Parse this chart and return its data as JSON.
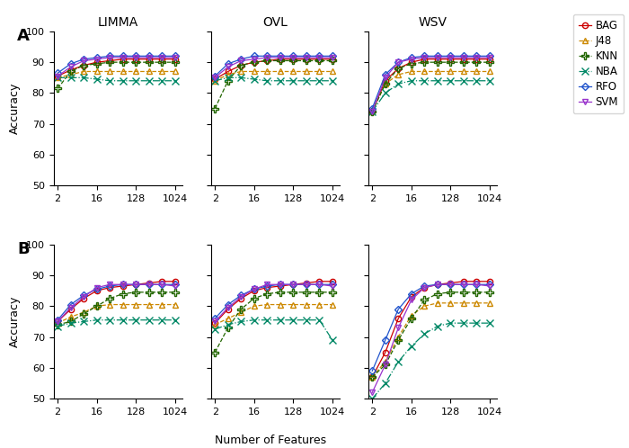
{
  "x_vals": [
    2,
    4,
    8,
    16,
    32,
    64,
    128,
    256,
    512,
    1024
  ],
  "col_titles": [
    "LIMMA",
    "OVL",
    "WSV"
  ],
  "row_labels": [
    "A",
    "B"
  ],
  "ylim": [
    50,
    100
  ],
  "yticks": [
    50,
    60,
    70,
    80,
    90,
    100
  ],
  "series": [
    "BAG",
    "J48",
    "KNN",
    "NBA",
    "RFO",
    "SVM"
  ],
  "colors": {
    "BAG": "#cc0000",
    "J48": "#cc8800",
    "KNN": "#226600",
    "NBA": "#008866",
    "RFO": "#2255cc",
    "SVM": "#9933cc"
  },
  "markers": {
    "BAG": "o",
    "J48": "^",
    "KNN": "P",
    "NBA": "x",
    "RFO": "D",
    "SVM": "v"
  },
  "linestyles": {
    "BAG": "-",
    "J48": "--",
    "KNN": "--",
    "NBA": "-.",
    "RFO": "-",
    "SVM": "-"
  },
  "markerfilled": {
    "BAG": false,
    "J48": false,
    "KNN": false,
    "NBA": true,
    "RFO": false,
    "SVM": false
  },
  "data": {
    "A": {
      "LIMMA": {
        "BAG": [
          85.5,
          87.5,
          89.0,
          90.0,
          90.5,
          91.0,
          91.0,
          91.0,
          91.0,
          91.0
        ],
        "J48": [
          85.0,
          86.0,
          87.0,
          87.0,
          87.0,
          87.0,
          87.0,
          87.0,
          87.0,
          87.0
        ],
        "KNN": [
          81.5,
          87.0,
          89.0,
          89.5,
          90.0,
          90.0,
          90.0,
          90.0,
          90.0,
          90.0
        ],
        "NBA": [
          85.0,
          85.0,
          85.0,
          84.5,
          84.0,
          84.0,
          84.0,
          84.0,
          84.0,
          84.0
        ],
        "RFO": [
          86.5,
          89.5,
          91.0,
          91.5,
          92.0,
          92.0,
          92.0,
          92.0,
          92.0,
          92.0
        ],
        "SVM": [
          85.5,
          88.5,
          90.5,
          91.0,
          91.5,
          91.5,
          91.5,
          91.5,
          91.5,
          91.5
        ]
      },
      "OVL": {
        "BAG": [
          84.5,
          87.0,
          89.0,
          90.0,
          90.5,
          91.0,
          91.0,
          91.0,
          91.0,
          91.0
        ],
        "J48": [
          84.0,
          86.0,
          87.0,
          87.0,
          87.0,
          87.0,
          87.0,
          87.0,
          87.0,
          87.0
        ],
        "KNN": [
          75.0,
          84.0,
          89.0,
          90.0,
          90.5,
          90.5,
          90.5,
          90.5,
          90.5,
          90.5
        ],
        "NBA": [
          84.0,
          85.0,
          85.0,
          84.5,
          84.0,
          84.0,
          84.0,
          84.0,
          84.0,
          84.0
        ],
        "RFO": [
          85.5,
          89.5,
          91.0,
          92.0,
          92.0,
          92.0,
          92.0,
          92.0,
          92.0,
          92.0
        ],
        "SVM": [
          85.0,
          88.5,
          90.5,
          91.0,
          91.5,
          91.5,
          91.5,
          91.5,
          91.5,
          91.5
        ]
      },
      "WSV": {
        "BAG": [
          74.0,
          84.0,
          88.0,
          90.0,
          91.0,
          91.0,
          91.0,
          91.0,
          91.0,
          91.0
        ],
        "J48": [
          74.0,
          83.0,
          86.0,
          87.0,
          87.0,
          87.0,
          87.0,
          87.0,
          87.0,
          87.0
        ],
        "KNN": [
          74.0,
          83.0,
          88.0,
          89.5,
          90.0,
          90.0,
          90.0,
          90.0,
          90.0,
          90.0
        ],
        "NBA": [
          74.0,
          80.0,
          83.0,
          84.0,
          84.0,
          84.0,
          84.0,
          84.0,
          84.0,
          84.0
        ],
        "RFO": [
          75.0,
          86.0,
          90.0,
          91.5,
          92.0,
          92.0,
          92.0,
          92.0,
          92.0,
          92.0
        ],
        "SVM": [
          74.0,
          85.0,
          90.0,
          91.0,
          91.5,
          91.5,
          91.5,
          91.5,
          91.5,
          91.5
        ]
      }
    },
    "B": {
      "LIMMA": {
        "BAG": [
          75.0,
          79.0,
          82.5,
          85.0,
          86.0,
          86.5,
          87.0,
          87.5,
          88.0,
          88.0
        ],
        "J48": [
          74.5,
          76.5,
          78.0,
          80.0,
          80.5,
          80.5,
          80.5,
          80.5,
          80.5,
          80.5
        ],
        "KNN": [
          74.0,
          75.0,
          77.5,
          80.0,
          82.5,
          84.0,
          84.5,
          84.5,
          84.5,
          84.5
        ],
        "NBA": [
          73.5,
          74.5,
          75.0,
          75.5,
          75.5,
          75.5,
          75.5,
          75.5,
          75.5,
          75.5
        ],
        "RFO": [
          75.5,
          80.5,
          83.5,
          85.5,
          86.5,
          87.0,
          87.0,
          87.0,
          87.0,
          87.0
        ],
        "SVM": [
          75.0,
          79.5,
          83.0,
          86.0,
          87.0,
          87.0,
          87.0,
          87.0,
          87.0,
          86.5
        ]
      },
      "OVL": {
        "BAG": [
          74.5,
          79.0,
          82.5,
          85.0,
          86.0,
          86.5,
          87.0,
          87.5,
          88.0,
          88.0
        ],
        "J48": [
          74.0,
          76.0,
          78.0,
          80.0,
          80.5,
          80.5,
          80.5,
          80.5,
          80.5,
          80.5
        ],
        "KNN": [
          65.0,
          73.0,
          79.0,
          82.5,
          84.0,
          84.5,
          84.5,
          84.5,
          84.5,
          84.5
        ],
        "NBA": [
          72.5,
          74.0,
          75.0,
          75.5,
          75.5,
          75.5,
          75.5,
          75.5,
          75.5,
          69.0
        ],
        "RFO": [
          76.0,
          80.5,
          83.5,
          85.5,
          86.5,
          87.0,
          87.0,
          87.0,
          87.0,
          87.0
        ],
        "SVM": [
          75.0,
          79.5,
          83.0,
          85.5,
          87.0,
          87.0,
          87.0,
          87.0,
          87.0,
          86.5
        ]
      },
      "WSV": {
        "BAG": [
          57.0,
          65.0,
          76.0,
          83.0,
          86.0,
          87.0,
          87.5,
          88.0,
          88.0,
          88.0
        ],
        "J48": [
          57.0,
          62.0,
          70.0,
          77.0,
          80.0,
          81.0,
          81.0,
          81.0,
          81.0,
          81.0
        ],
        "KNN": [
          57.0,
          61.0,
          69.0,
          76.0,
          82.0,
          84.0,
          84.5,
          84.5,
          84.5,
          84.5
        ],
        "NBA": [
          50.0,
          55.0,
          62.0,
          67.0,
          71.0,
          73.5,
          74.5,
          74.5,
          74.5,
          74.5
        ],
        "RFO": [
          59.0,
          69.0,
          79.0,
          84.0,
          86.5,
          87.0,
          87.0,
          87.0,
          87.0,
          87.0
        ],
        "SVM": [
          52.0,
          61.0,
          73.0,
          82.0,
          86.0,
          87.0,
          87.0,
          87.0,
          87.0,
          86.5
        ]
      }
    }
  }
}
